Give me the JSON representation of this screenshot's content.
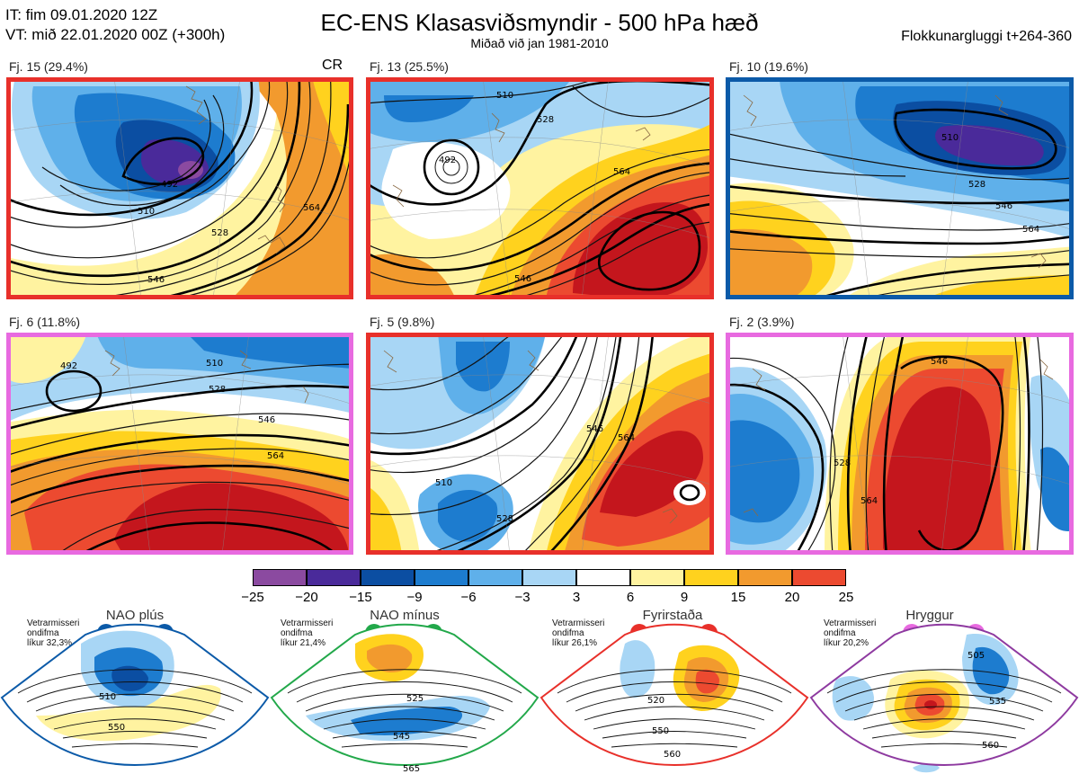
{
  "header": {
    "it_line": "IT: fim 09.01.2020 12Z",
    "vt_line": "VT: mið 22.01.2020 00Z  (+300h)",
    "title": "EC-ENS Klasasviðsmyndir - 500 hPa hæð",
    "subtitle": "Miðað við jan 1981-2010",
    "window": "Flokkunargluggi t+264-360"
  },
  "maps": [
    {
      "label": "Fj. 15 (29.4%)",
      "extra": "CR",
      "frame_color": "#e8302a",
      "contours": [
        "492",
        "510",
        "528",
        "546",
        "564"
      ]
    },
    {
      "label": "Fj. 13 (25.5%)",
      "frame_color": "#e8302a",
      "contours": [
        "492",
        "510",
        "528",
        "546",
        "564"
      ]
    },
    {
      "label": "Fj. 10 (19.6%)",
      "frame_color": "#0b5aa8",
      "contours": [
        "510",
        "528",
        "546",
        "564"
      ]
    },
    {
      "label": "Fj. 6 (11.8%)",
      "frame_color": "#e86ae0",
      "contours": [
        "492",
        "510",
        "528",
        "546",
        "564"
      ]
    },
    {
      "label": "Fj. 5 (9.8%)",
      "frame_color": "#e8302a",
      "contours": [
        "510",
        "528",
        "546",
        "564"
      ]
    },
    {
      "label": "Fj. 2 (3.9%)",
      "frame_color": "#e86ae0",
      "contours": [
        "528",
        "546",
        "564"
      ]
    }
  ],
  "colorbar": {
    "ticks": [
      "−25",
      "−20",
      "−15",
      "−9",
      "−6",
      "−3",
      "3",
      "6",
      "9",
      "15",
      "20",
      "25"
    ],
    "colors": [
      "#8b4aa0",
      "#4a2a9a",
      "#0b4ea2",
      "#1d7ccf",
      "#5fb0ea",
      "#a8d6f5",
      "#ffffff",
      "#fff3a0",
      "#ffd21e",
      "#f29a2e",
      "#ec4a30",
      "#c4161d"
    ]
  },
  "regimes": [
    {
      "name": "NAO plús",
      "note": [
        "Vetrarmisseri",
        "ondifma",
        "líkur 32,3%"
      ],
      "color": "#0b5aa8",
      "labels": [
        "510",
        "550"
      ]
    },
    {
      "name": "NAO mínus",
      "note": [
        "Vetrarmisseri",
        "ondifma",
        "líkur 21,4%"
      ],
      "color": "#22a84a",
      "labels": [
        "525",
        "545",
        "565"
      ]
    },
    {
      "name": "Fyrirstaða",
      "note": [
        "Vetrarmisseri",
        "ondifma",
        "líkur 26,1%"
      ],
      "color": "#e8302a",
      "labels": [
        "520",
        "550",
        "560"
      ]
    },
    {
      "name": "Hryggur",
      "note": [
        "Vetrarmisseri",
        "ondifma",
        "líkur 20,2%"
      ],
      "color": "#e86ae0",
      "labels": [
        "505",
        "535",
        "560"
      ]
    }
  ]
}
